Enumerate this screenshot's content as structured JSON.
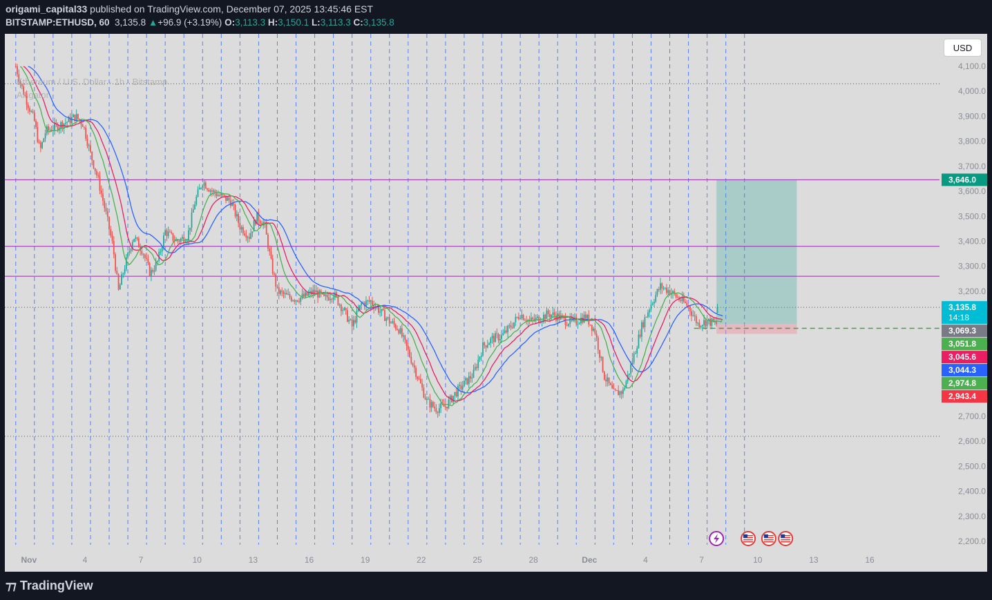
{
  "header": {
    "author": "origami_capital33",
    "published_text": "published on TradingView.com, December 07, 2025 13:45:46 EST",
    "symbol": "BITSTAMP:ETHUSD, 60",
    "last": "3,135.8",
    "change": "+96.9 (+3.19%)",
    "o_label": "O:",
    "o": "3,113.3",
    "h_label": "H:",
    "h": "3,150.1",
    "l_label": "L:",
    "l": "3,113.3",
    "c_label": "C:",
    "c": "3,135.8"
  },
  "legend": {
    "title": "Ethereum / U.S. Dollar · 1h · Bitstamp",
    "indicator": "Alligator"
  },
  "currency_button": "USD",
  "footer": {
    "logo_text": "TradingView"
  },
  "colors": {
    "up": "#26a69a",
    "down": "#ef5350",
    "jaw": "#2962ff",
    "teeth": "#e91e63",
    "lips": "#4caf50",
    "level_line": "#9c27b0",
    "target_zone": "#26a69a",
    "stop_zone": "#f28b9b",
    "session_line": "#2962ff"
  },
  "chart_data": {
    "type": "candlestick",
    "symbol": "ETHUSD",
    "timeframe": "1h",
    "ylim": [
      2150,
      4180
    ],
    "y_ticks": [
      "4,100.0",
      "4,000.0",
      "3,900.0",
      "3,800.0",
      "3,700.0",
      "3,600.0",
      "3,500.0",
      "3,400.0",
      "3,300.0",
      "3,200.0",
      "2,700.0",
      "2,600.0",
      "2,500.0",
      "2,400.0",
      "2,300.0",
      "2,200.0"
    ],
    "x_labels": [
      {
        "label": "Nov",
        "day": 1
      },
      {
        "label": "4",
        "day": 4
      },
      {
        "label": "7",
        "day": 7
      },
      {
        "label": "10",
        "day": 10
      },
      {
        "label": "13",
        "day": 13
      },
      {
        "label": "16",
        "day": 16
      },
      {
        "label": "19",
        "day": 19
      },
      {
        "label": "22",
        "day": 22
      },
      {
        "label": "25",
        "day": 25
      },
      {
        "label": "28",
        "day": 28
      },
      {
        "label": "Dec",
        "day": 31
      },
      {
        "label": "4",
        "day": 34
      },
      {
        "label": "7",
        "day": 37
      },
      {
        "label": "10",
        "day": 40
      },
      {
        "label": "13",
        "day": 43
      },
      {
        "label": "16",
        "day": 46
      }
    ],
    "close_path": [
      [
        0,
        4100
      ],
      [
        0.3,
        4020
      ],
      [
        0.6,
        3960
      ],
      [
        1,
        3880
      ],
      [
        1.3,
        3760
      ],
      [
        1.6,
        3840
      ],
      [
        2.2,
        3860
      ],
      [
        2.8,
        3880
      ],
      [
        3.2,
        3900
      ],
      [
        3.6,
        3870
      ],
      [
        4,
        3750
      ],
      [
        4.4,
        3650
      ],
      [
        4.8,
        3520
      ],
      [
        5.2,
        3380
      ],
      [
        5.5,
        3200
      ],
      [
        5.8,
        3290
      ],
      [
        6.3,
        3420
      ],
      [
        6.8,
        3360
      ],
      [
        7.2,
        3270
      ],
      [
        7.6,
        3320
      ],
      [
        8,
        3440
      ],
      [
        8.6,
        3400
      ],
      [
        9.2,
        3420
      ],
      [
        9.6,
        3560
      ],
      [
        10,
        3640
      ],
      [
        10.5,
        3600
      ],
      [
        11,
        3580
      ],
      [
        11.5,
        3560
      ],
      [
        12,
        3460
      ],
      [
        12.5,
        3420
      ],
      [
        12.9,
        3500
      ],
      [
        13.3,
        3470
      ],
      [
        13.7,
        3300
      ],
      [
        14,
        3200
      ],
      [
        14.5,
        3180
      ],
      [
        15,
        3170
      ],
      [
        15.5,
        3180
      ],
      [
        16,
        3200
      ],
      [
        16.5,
        3170
      ],
      [
        17,
        3190
      ],
      [
        17.5,
        3130
      ],
      [
        18,
        3060
      ],
      [
        18.5,
        3150
      ],
      [
        19,
        3160
      ],
      [
        19.5,
        3120
      ],
      [
        20,
        3080
      ],
      [
        20.5,
        3050
      ],
      [
        21,
        2960
      ],
      [
        21.5,
        2860
      ],
      [
        22,
        2760
      ],
      [
        22.5,
        2730
      ],
      [
        23,
        2740
      ],
      [
        23.5,
        2790
      ],
      [
        24,
        2830
      ],
      [
        24.5,
        2870
      ],
      [
        25,
        2980
      ],
      [
        25.5,
        3010
      ],
      [
        26,
        3020
      ],
      [
        26.5,
        3060
      ],
      [
        27,
        3110
      ],
      [
        27.5,
        3080
      ],
      [
        28,
        3090
      ],
      [
        28.5,
        3110
      ],
      [
        29,
        3100
      ],
      [
        29.5,
        3080
      ],
      [
        30,
        3080
      ],
      [
        30.5,
        3100
      ],
      [
        31,
        3040
      ],
      [
        31.5,
        2860
      ],
      [
        32,
        2790
      ],
      [
        32.5,
        2800
      ],
      [
        33,
        2920
      ],
      [
        33.5,
        3060
      ],
      [
        34,
        3150
      ],
      [
        34.5,
        3220
      ],
      [
        35,
        3200
      ],
      [
        35.5,
        3170
      ],
      [
        36,
        3140
      ],
      [
        36.5,
        3070
      ],
      [
        37,
        3080
      ],
      [
        37.5,
        3069
      ]
    ],
    "last_candle": {
      "open": 3113.3,
      "high": 3150.1,
      "low": 3113.3,
      "close": 3135.8
    },
    "horizontal_levels": [
      3646.0,
      3380.0,
      3260.0
    ],
    "dotted_levels": [
      4030,
      3135.8,
      2620
    ],
    "dashed_level": 3051.8,
    "position_tool": {
      "entry": 3069.3,
      "target": 3646.0,
      "stop": 3030,
      "start_day": 37.5,
      "end_day": 41.8
    },
    "price_labels": [
      {
        "value": "3,646.0",
        "price": 3646.0,
        "color": "#089981"
      },
      {
        "value": "3,135.8",
        "price": 3135.8,
        "color": "#00bcd4",
        "countdown": "14:18"
      },
      {
        "value": "3,069.3",
        "price": 3069.3,
        "color": "#787b86"
      },
      {
        "value": "3,051.8",
        "price": 3051.8,
        "color": "#4caf50"
      },
      {
        "value": "3,045.6",
        "price": 3045.6,
        "color": "#e91e63"
      },
      {
        "value": "3,044.3",
        "price": 3044.3,
        "color": "#2962ff"
      },
      {
        "value": "2,974.8",
        "price": 2974.8,
        "color": "#4caf50"
      },
      {
        "value": "2,943.4",
        "price": 2943.4,
        "color": "#f23645"
      }
    ],
    "event_icons": [
      {
        "type": "lightning-icon",
        "day": 37.5
      },
      {
        "type": "us-flag-icon",
        "day": 39.2
      },
      {
        "type": "us-flag-icon",
        "day": 40.3
      },
      {
        "type": "us-flag-icon",
        "day": 41.2
      }
    ]
  }
}
